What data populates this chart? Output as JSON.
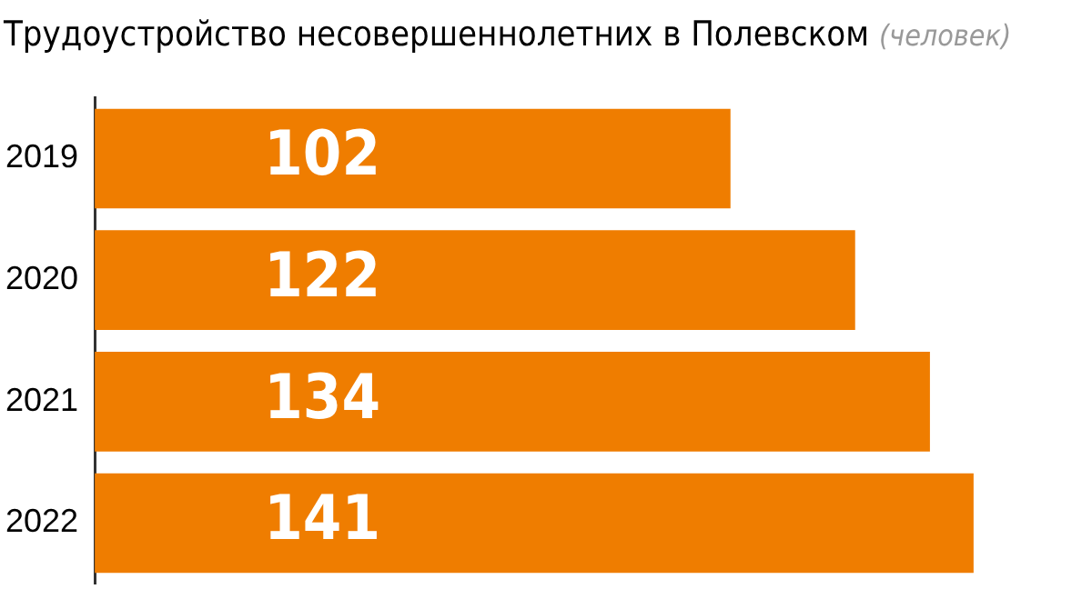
{
  "chart_data": {
    "type": "bar",
    "orientation": "horizontal",
    "title": "Трудоустройство несовершеннолетних в Полевском",
    "subtitle": "(человек)",
    "categories": [
      "2019",
      "2020",
      "2021",
      "2022"
    ],
    "values": [
      102,
      122,
      134,
      141
    ],
    "color": "#ef7d00",
    "data_labels": true,
    "grid": false,
    "legend": false
  }
}
